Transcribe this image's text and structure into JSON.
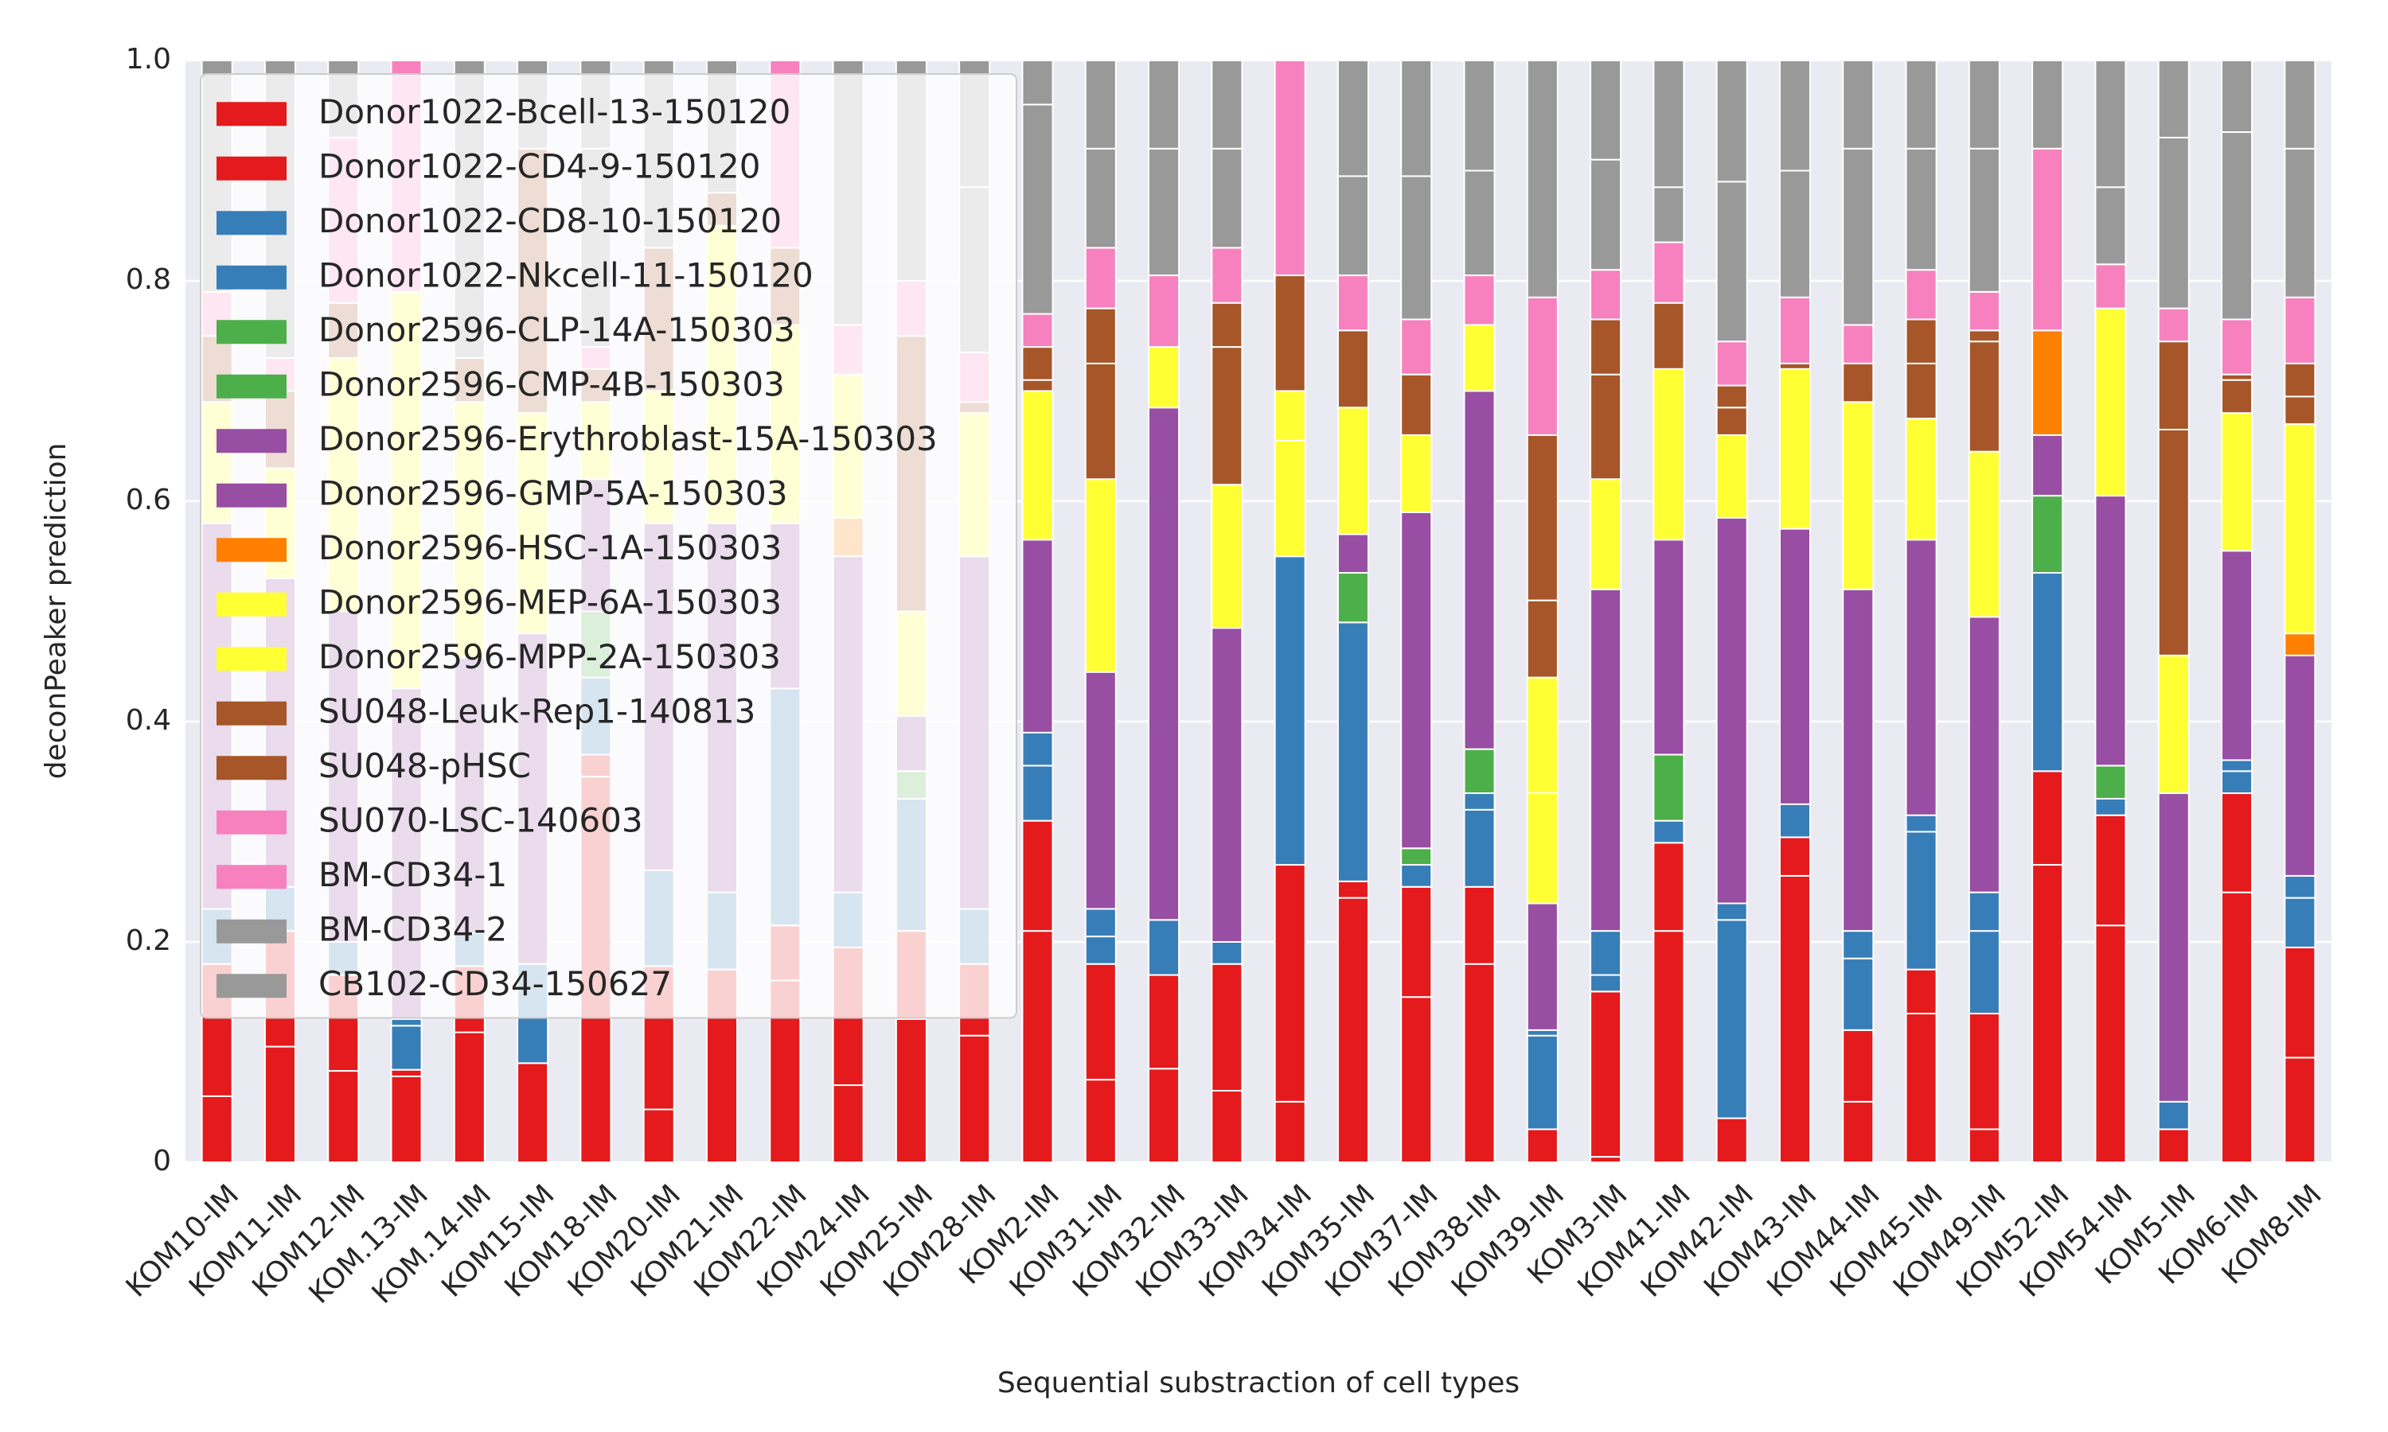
{
  "chart_data": {
    "type": "stacked_bar",
    "x_label": "Sequential substraction of cell types",
    "y_label": "deconPeaker prediction",
    "categories": [
      "KOM10-IM",
      "KOM11-IM",
      "KOM12-IM",
      "KOM.13-IM",
      "KOM.14-IM",
      "KOM15-IM",
      "KOM18-IM",
      "KOM20-IM",
      "KOM21-IM",
      "KOM22-IM",
      "KOM24-IM",
      "KOM25-IM",
      "KOM28-IM",
      "KOM2-IM",
      "KOM31-IM",
      "KOM32-IM",
      "KOM33-IM",
      "KOM34-IM",
      "KOM35-IM",
      "KOM37-IM",
      "KOM38-IM",
      "KOM39-IM",
      "KOM3-IM",
      "KOM41-IM",
      "KOM42-IM",
      "KOM43-IM",
      "KOM44-IM",
      "KOM45-IM",
      "KOM49-IM",
      "KOM52-IM",
      "KOM54-IM",
      "KOM5-IM",
      "KOM6-IM",
      "KOM8-IM"
    ],
    "series": [
      {
        "name": "Donor1022-Bcell-13-150120",
        "color": "#e41a1c",
        "values": [
          0.06,
          0.105,
          0.083,
          0.078,
          0.118,
          0.09,
          0.35,
          0.048,
          0.175,
          0.165,
          0.07,
          0.13,
          0.115,
          0.21,
          0.075,
          0.085,
          0.065,
          0.055,
          0.24,
          0.15,
          0.18,
          0.03,
          0.005,
          0.21,
          0.04,
          0.26,
          0.055,
          0.135,
          0.03,
          0.27,
          0.215,
          0.03,
          0.245,
          0.095
        ]
      },
      {
        "name": "Donor1022-CD4-9-150120",
        "color": "#e41a1c",
        "values": [
          0.12,
          0.105,
          0.087,
          0.006,
          0.06,
          0,
          0.02,
          0.13,
          0,
          0.05,
          0.125,
          0.08,
          0.065,
          0.1,
          0.105,
          0.085,
          0.115,
          0.215,
          0.015,
          0.1,
          0.07,
          0,
          0.15,
          0.08,
          0,
          0.035,
          0.065,
          0.04,
          0.105,
          0.085,
          0.1,
          0,
          0.09,
          0.1
        ]
      },
      {
        "name": "Donor1022-CD8-10-150120",
        "color": "#377eb8",
        "values": [
          0.05,
          0.04,
          0.03,
          0.04,
          0.03,
          0.09,
          0.07,
          0.087,
          0.07,
          0.215,
          0.05,
          0.12,
          0.05,
          0.05,
          0.025,
          0.05,
          0.02,
          0.28,
          0.235,
          0.02,
          0.07,
          0.085,
          0.015,
          0.02,
          0.18,
          0.03,
          0.065,
          0.125,
          0.075,
          0.18,
          0.015,
          0.025,
          0.02,
          0.045
        ]
      },
      {
        "name": "Donor1022-Nkcell-11-150120",
        "color": "#377eb8",
        "values": [
          0,
          0,
          0,
          0.006,
          0,
          0,
          0,
          0,
          0,
          0,
          0,
          0,
          0,
          0.03,
          0.025,
          0,
          0,
          0,
          0,
          0,
          0.015,
          0.005,
          0.04,
          0,
          0.015,
          0,
          0.025,
          0.015,
          0.035,
          0,
          0,
          0,
          0.01,
          0.02
        ]
      },
      {
        "name": "Donor2596-CLP-14A-150303",
        "color": "#4daf4a",
        "values": [
          0,
          0,
          0,
          0,
          0,
          0,
          0.06,
          0,
          0,
          0,
          0,
          0.025,
          0,
          0,
          0,
          0,
          0,
          0,
          0,
          0.015,
          0,
          0,
          0,
          0.06,
          0,
          0,
          0,
          0,
          0,
          0.07,
          0.03,
          0,
          0,
          0
        ]
      },
      {
        "name": "Donor2596-CMP-4B-150303",
        "color": "#4daf4a",
        "values": [
          0,
          0,
          0,
          0,
          0,
          0,
          0,
          0,
          0,
          0,
          0,
          0,
          0,
          0,
          0,
          0,
          0,
          0,
          0.045,
          0,
          0.04,
          0,
          0,
          0,
          0,
          0,
          0,
          0,
          0,
          0,
          0,
          0,
          0,
          0
        ]
      },
      {
        "name": "Donor2596-Erythroblast-15A-150303",
        "color": "#984ea3",
        "values": [
          0.35,
          0.28,
          0.3,
          0.3,
          0.25,
          0.3,
          0.12,
          0.315,
          0.335,
          0.15,
          0.305,
          0.05,
          0.32,
          0.175,
          0.215,
          0.465,
          0.285,
          0,
          0.035,
          0.305,
          0.325,
          0.115,
          0.31,
          0.195,
          0.35,
          0.25,
          0.31,
          0.25,
          0.25,
          0.055,
          0.245,
          0.28,
          0.19,
          0.2
        ]
      },
      {
        "name": "Donor2596-GMP-5A-150303",
        "color": "#984ea3",
        "values": [
          0,
          0,
          0,
          0,
          0,
          0,
          0,
          0,
          0,
          0,
          0,
          0,
          0,
          0,
          0,
          0,
          0,
          0,
          0,
          0,
          0,
          0,
          0,
          0,
          0,
          0,
          0,
          0,
          0,
          0,
          0,
          0,
          0,
          0
        ]
      },
      {
        "name": "Donor2596-HSC-1A-150303",
        "color": "#ff7f00",
        "values": [
          0,
          0,
          0,
          0,
          0,
          0,
          0,
          0,
          0,
          0,
          0.035,
          0,
          0,
          0,
          0,
          0,
          0,
          0,
          0,
          0,
          0,
          0,
          0,
          0,
          0,
          0,
          0,
          0,
          0,
          0.095,
          0,
          0,
          0,
          0.02
        ]
      },
      {
        "name": "Donor2596-MEP-6A-150303",
        "color": "#ffff33",
        "values": [
          0,
          0,
          0,
          0,
          0,
          0,
          0,
          0,
          0,
          0,
          0,
          0,
          0,
          0,
          0,
          0,
          0,
          0.105,
          0,
          0,
          0,
          0.1,
          0,
          0,
          0,
          0,
          0,
          0,
          0,
          0,
          0,
          0,
          0,
          0
        ]
      },
      {
        "name": "Donor2596-MPP-2A-150303",
        "color": "#ffff33",
        "values": [
          0.11,
          0.1,
          0.23,
          0.36,
          0.232,
          0.2,
          0.07,
          0.12,
          0.27,
          0.18,
          0.13,
          0.095,
          0.13,
          0.135,
          0.175,
          0.055,
          0.13,
          0.045,
          0.115,
          0.07,
          0.06,
          0.105,
          0.1,
          0.155,
          0.075,
          0.145,
          0.17,
          0.11,
          0.15,
          0,
          0.17,
          0.125,
          0.125,
          0.19
        ]
      },
      {
        "name": "SU048-Leuk-Rep1-140813",
        "color": "#a65628",
        "values": [
          0.06,
          0.07,
          0.05,
          0,
          0.04,
          0.24,
          0.03,
          0.13,
          0.03,
          0.07,
          0,
          0.25,
          0.01,
          0.01,
          0.105,
          0,
          0.125,
          0,
          0,
          0,
          0,
          0.07,
          0.095,
          0.06,
          0.025,
          0.005,
          0.035,
          0.05,
          0.1,
          0,
          0,
          0.205,
          0.03,
          0.025
        ]
      },
      {
        "name": "SU048-pHSC",
        "color": "#a65628",
        "values": [
          0,
          0,
          0,
          0,
          0,
          0,
          0,
          0,
          0,
          0,
          0,
          0,
          0,
          0.03,
          0.05,
          0,
          0.04,
          0.105,
          0.07,
          0.055,
          0,
          0.15,
          0.05,
          0,
          0.02,
          0,
          0,
          0.04,
          0.01,
          0,
          0,
          0.08,
          0.005,
          0.03
        ]
      },
      {
        "name": "SU070-LSC-140603",
        "color": "#f781bf",
        "values": [
          0,
          0,
          0,
          0.21,
          0,
          0,
          0,
          0,
          0,
          0.17,
          0,
          0,
          0,
          0,
          0,
          0,
          0,
          0.195,
          0,
          0,
          0,
          0,
          0,
          0,
          0,
          0,
          0,
          0,
          0,
          0,
          0,
          0,
          0,
          0
        ]
      },
      {
        "name": "BM-CD34-1",
        "color": "#f781bf",
        "values": [
          0.04,
          0.03,
          0.15,
          0,
          0,
          0,
          0.02,
          0,
          0,
          0,
          0.045,
          0.05,
          0.045,
          0.03,
          0.055,
          0.065,
          0.05,
          0,
          0.05,
          0.05,
          0.045,
          0.125,
          0.045,
          0.055,
          0.04,
          0.06,
          0.035,
          0.045,
          0.035,
          0.165,
          0.04,
          0.03,
          0.05,
          0.06
        ]
      },
      {
        "name": "BM-CD34-2",
        "color": "#999999",
        "values": [
          0.21,
          0.27,
          0.07,
          0,
          0.27,
          0.08,
          0.18,
          0.17,
          0.12,
          0,
          0.24,
          0.2,
          0.15,
          0.19,
          0.09,
          0.115,
          0.09,
          0,
          0.09,
          0.13,
          0.095,
          0.215,
          0.1,
          0.05,
          0.145,
          0.115,
          0.16,
          0.11,
          0.13,
          0.08,
          0.07,
          0.155,
          0.17,
          0.135
        ]
      },
      {
        "name": "CB102-CD34-150627",
        "color": "#999999",
        "values": [
          0,
          0,
          0,
          0,
          0,
          0,
          0.08,
          0,
          0,
          0,
          0,
          0,
          0.115,
          0.04,
          0.08,
          0.08,
          0.08,
          0,
          0.105,
          0.105,
          0.1,
          0,
          0.09,
          0.115,
          0.11,
          0.1,
          0.08,
          0.08,
          0.08,
          0,
          0.115,
          0.07,
          0.065,
          0.08
        ]
      }
    ],
    "ylim": [
      0,
      1
    ],
    "yticks": [
      0,
      0.2,
      0.4,
      0.6,
      0.8,
      {
        "value": 1,
        "label": "1.0"
      }
    ],
    "grid": true,
    "legend": "upper left"
  }
}
